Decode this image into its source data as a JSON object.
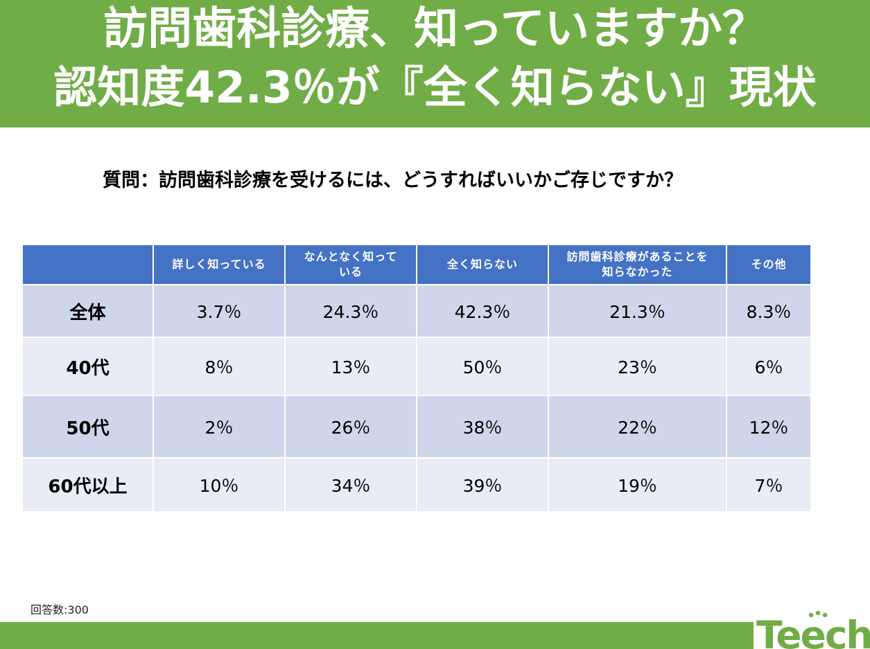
{
  "header": {
    "title_line1": "訪問歯科診療、知っていますか？",
    "title_line2": "認知度42.3％が『全く知らない』現状"
  },
  "question": "質問：訪問歯科診療を受けるには、どうすればいいかご存じですか？",
  "chart_data": {
    "type": "table",
    "columns": [
      "",
      "詳しく知っている",
      "なんとなく知っている",
      "全く知らない",
      "訪問歯科診療があることを知らなかった",
      "その他"
    ],
    "header_display": [
      "",
      "詳しく知っている",
      "なんとなく知って\nいる",
      "全く知らない",
      "訪問歯科診療があることを\n知らなかった",
      "その他"
    ],
    "rows": [
      {
        "label": "全体",
        "cells": [
          "3.7％",
          "24.3％",
          "42.3％",
          "21.3％",
          "8.3％"
        ],
        "values": [
          3.7,
          24.3,
          42.3,
          21.3,
          8.3
        ]
      },
      {
        "label": "40代",
        "cells": [
          "8％",
          "13％",
          "50％",
          "23％",
          "6％"
        ],
        "values": [
          8,
          13,
          50,
          23,
          6
        ]
      },
      {
        "label": "50代",
        "cells": [
          "2％",
          "26％",
          "38％",
          "22％",
          "12％"
        ],
        "values": [
          2,
          26,
          38,
          22,
          12
        ]
      },
      {
        "label": "60代以上",
        "cells": [
          "10％",
          "34％",
          "39％",
          "19％",
          "7％"
        ],
        "values": [
          10,
          34,
          39,
          19,
          7
        ]
      }
    ],
    "unit": "％"
  },
  "footnote": "回答数:300",
  "logo": {
    "text": "Teech",
    "color": "#70ad47"
  },
  "colors": {
    "banner": "#70ad47",
    "table_header": "#4472c4",
    "row_odd": "#cfd5ea",
    "row_even": "#e9ebf5"
  }
}
